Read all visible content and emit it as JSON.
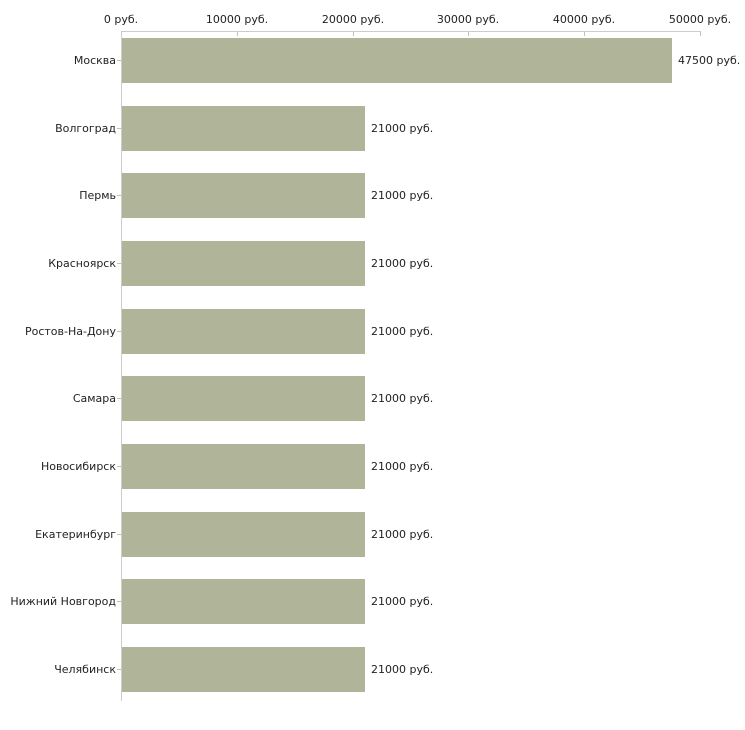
{
  "chart_data": {
    "type": "bar",
    "orientation": "horizontal",
    "title": "",
    "xlabel": "",
    "ylabel": "",
    "unit": "руб.",
    "categories": [
      "Москва",
      "Волгоград",
      "Пермь",
      "Красноярск",
      "Ростов-На-Дону",
      "Самара",
      "Новосибирск",
      "Екатеринбург",
      "Нижний Новгород",
      "Челябинск"
    ],
    "values": [
      47500,
      21000,
      21000,
      21000,
      21000,
      21000,
      21000,
      21000,
      21000,
      21000
    ],
    "value_labels": [
      "47500 руб.",
      "21000 руб.",
      "21000 руб.",
      "21000 руб.",
      "21000 руб.",
      "21000 руб.",
      "21000 руб.",
      "21000 руб.",
      "21000 руб.",
      "21000 руб."
    ],
    "x_tick_values": [
      0,
      10000,
      20000,
      30000,
      40000,
      50000
    ],
    "x_tick_labels": [
      "0 руб.",
      "10000 руб.",
      "20000 руб.",
      "30000 руб.",
      "40000 руб.",
      "50000 руб."
    ],
    "xlim": [
      0,
      50000
    ],
    "grid": false,
    "legend": false,
    "axis_position": "top",
    "colors": {
      "bar": "#b0b59a",
      "tick": "#c7c3a0",
      "axis_line": "#cccccc",
      "text": "#222222",
      "background": "#ffffff"
    }
  }
}
